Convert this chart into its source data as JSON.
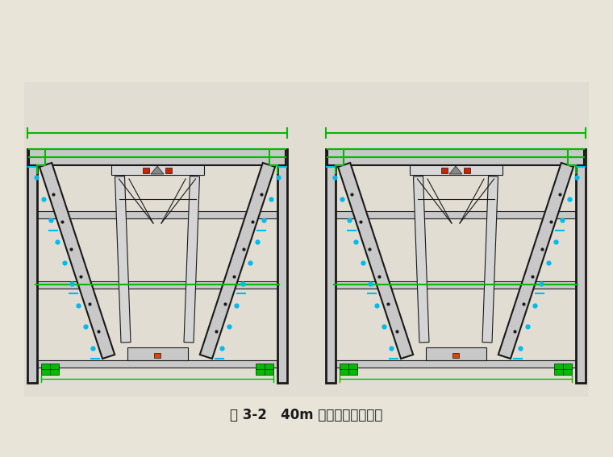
{
  "title": "图 3-2   40m 箱梁外模板断面图",
  "bg_color": "#e8e4d8",
  "drawing_bg": "#e2ddd3",
  "black": "#1a1a1a",
  "dark": "#333333",
  "green": "#00bb00",
  "cyan": "#00bbee",
  "red": "#cc2200",
  "white": "#f8f8f8",
  "light_gray": "#c8c8c8",
  "mid_gray": "#aaaaaa",
  "figsize": [
    7.6,
    5.67
  ],
  "dpi": 100
}
